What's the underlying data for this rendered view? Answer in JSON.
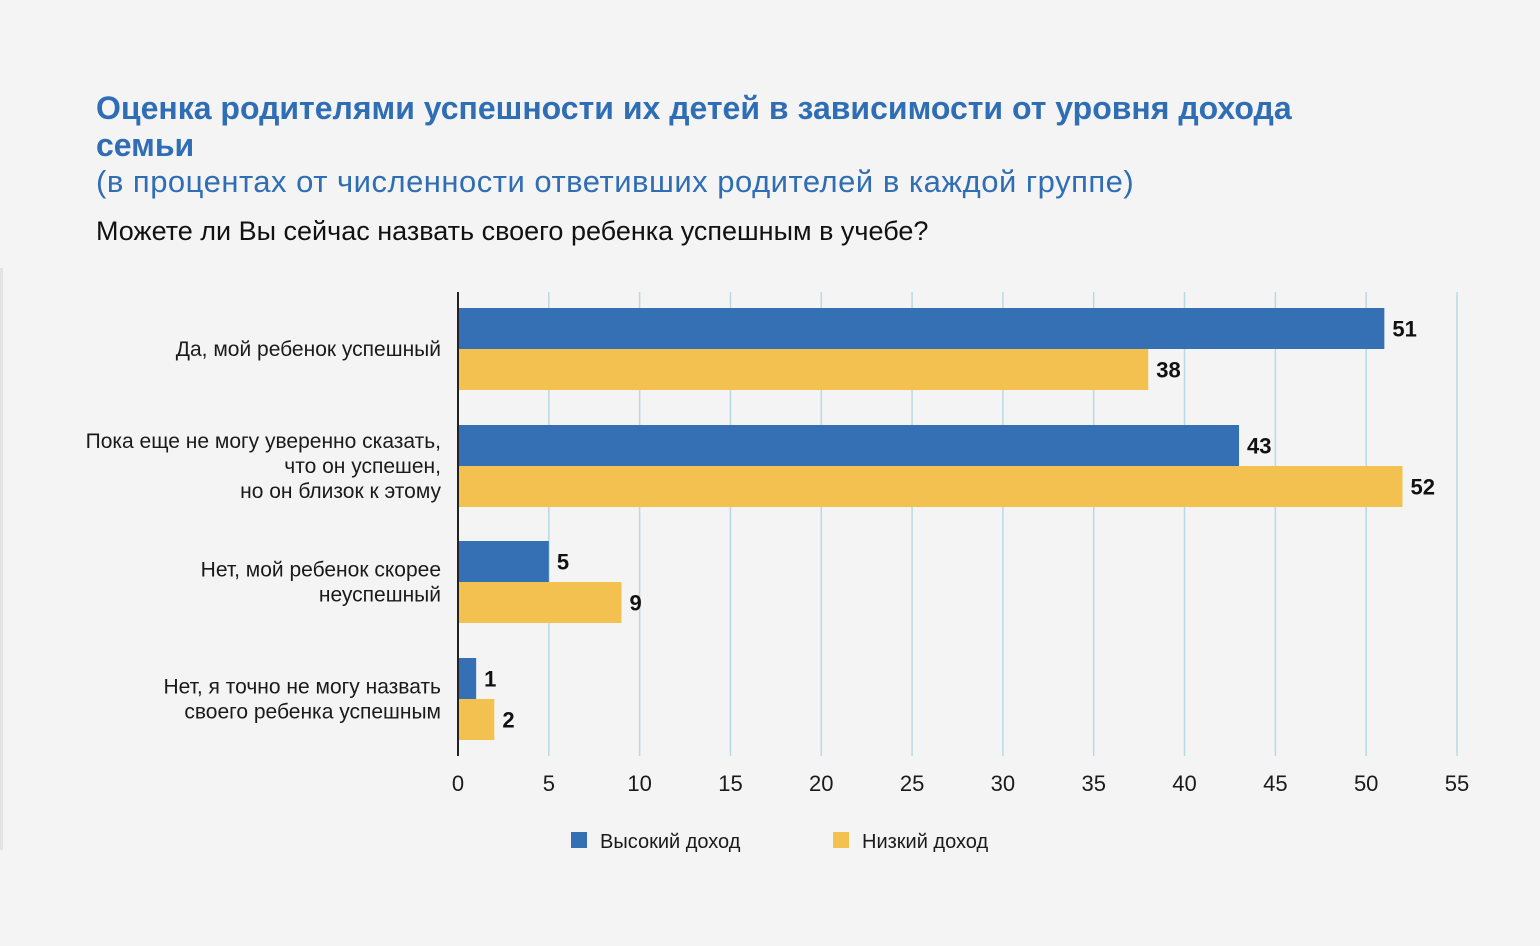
{
  "header": {
    "title": "Оценка родителями успешности их детей в зависимости от уровня дохода семьи",
    "subtitle": "(в процентах от численности ответивших родителей в каждой группе)",
    "question": "Можете ли Вы сейчас назвать своего ребенка успешным в учебе?"
  },
  "chart_data": {
    "type": "bar",
    "orientation": "horizontal",
    "categories": [
      [
        "Да, мой ребенок успешный"
      ],
      [
        "Пока еще не могу уверенно сказать,",
        "что он успешен,",
        "но он близок к этому"
      ],
      [
        "Нет, мой ребенок скорее",
        "неуспешный"
      ],
      [
        "Нет, я точно не могу назвать",
        "своего ребенка успешным"
      ]
    ],
    "series": [
      {
        "name": "Высокий доход",
        "color": "#3570b4",
        "values": [
          51,
          43,
          5,
          1
        ]
      },
      {
        "name": "Низкий доход",
        "color": "#f2c150",
        "values": [
          38,
          52,
          9,
          2
        ]
      }
    ],
    "xlim": [
      0,
      55
    ],
    "xticks": [
      "0",
      "5",
      "10",
      "15",
      "20",
      "25",
      "30",
      "35",
      "40",
      "45",
      "50",
      "55"
    ],
    "grid": "vertical",
    "grid_color": "#b9d9e4",
    "legend_position": "bottom-center"
  }
}
